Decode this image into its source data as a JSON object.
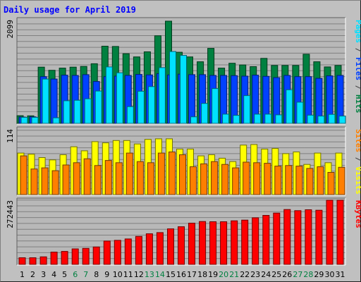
{
  "chart_data": {
    "type": "bar",
    "title": "Daily usage for April 2019",
    "categories": [
      "1",
      "2",
      "3",
      "4",
      "5",
      "6",
      "7",
      "8",
      "9",
      "10",
      "11",
      "12",
      "13",
      "14",
      "15",
      "16",
      "17",
      "18",
      "19",
      "20",
      "21",
      "22",
      "23",
      "24",
      "25",
      "26",
      "27",
      "28",
      "29",
      "30",
      "31"
    ],
    "weekend_days": [
      "6",
      "7",
      "13",
      "14",
      "20",
      "21",
      "27",
      "28"
    ],
    "panels": [
      {
        "id": "hits-panel",
        "ymax_label": "2099",
        "ymax": 2099,
        "legend": [
          {
            "text": "Pages",
            "color": "#00e0ff"
          },
          {
            "text": " / ",
            "color": "#404040"
          },
          {
            "text": "Files",
            "color": "#0040ff"
          },
          {
            "text": " / ",
            "color": "#404040"
          },
          {
            "text": "Hits",
            "color": "#008040"
          }
        ],
        "series": [
          {
            "name": "Hits",
            "color": "#008040",
            "values": [
              158,
              155,
              1155,
              1090,
              1135,
              1155,
              1170,
              1225,
              1585,
              1580,
              1430,
              1365,
              1470,
              1800,
              2099,
              1460,
              1365,
              1265,
              1540,
              1135,
              1235,
              1200,
              1165,
              1335,
              1190,
              1190,
              1190,
              1420,
              1265,
              1160,
              1190
            ]
          },
          {
            "name": "Files",
            "color": "#0040ff",
            "values": [
              130,
              135,
              960,
              910,
              990,
              985,
              1000,
              860,
              960,
              970,
              985,
              1005,
              995,
              1020,
              995,
              1010,
              1000,
              1000,
              985,
              985,
              980,
              970,
              990,
              965,
              940,
              985,
              960,
              960,
              925,
              975,
              985
            ]
          },
          {
            "name": "Pages",
            "color": "#00e0ff",
            "values": [
              125,
              125,
              910,
              115,
              465,
              475,
              505,
              665,
              1160,
              1040,
              345,
              660,
              755,
              1145,
              1475,
              1395,
              135,
              410,
              715,
              190,
              165,
              570,
              190,
              190,
              175,
              690,
              435,
              170,
              150,
              185,
              150
            ]
          }
        ]
      },
      {
        "id": "visits-panel",
        "ymax_label": "114",
        "ymax": 114,
        "legend": [
          {
            "text": "Sites",
            "color": "#ff8000"
          },
          {
            "text": " / ",
            "color": "#404040"
          },
          {
            "text": "Visits",
            "color": "#ffff00"
          }
        ],
        "series": [
          {
            "name": "Visits",
            "color": "#ffff00",
            "values": [
              73,
              71,
              65,
              61,
              70,
              84,
              77,
              93,
              91,
              95,
              95,
              89,
              97,
              98,
              98,
              80,
              80,
              68,
              70,
              64,
              58,
              87,
              88,
              80,
              81,
              72,
              75,
              53,
              73,
              56,
              73
            ]
          },
          {
            "name": "Sites",
            "color": "#ff8000",
            "values": [
              68,
              45,
              47,
              42,
              52,
              56,
              63,
              51,
              60,
              56,
              73,
              58,
              56,
              73,
              75,
              70,
              49,
              54,
              58,
              53,
              47,
              57,
              56,
              55,
              50,
              51,
              50,
              46,
              49,
              39,
              48
            ]
          }
        ]
      },
      {
        "id": "kbytes-panel",
        "ymax_label": "272443",
        "ymax": 272443,
        "legend": [
          {
            "text": "KBytes",
            "color": "#ff0000"
          }
        ],
        "series": [
          {
            "name": "KBytes",
            "color": "#ff0000",
            "values": [
              28000,
              28000,
              32000,
              52000,
              55000,
              66000,
              68000,
              74000,
              99000,
              102000,
              108000,
              119000,
              130000,
              135000,
              151000,
              160000,
              175000,
              182000,
              181000,
              181000,
              185000,
              188000,
              198000,
              208000,
              218000,
              233000,
              228000,
              232000,
              230000,
              272443,
              272443
            ]
          }
        ]
      }
    ]
  }
}
